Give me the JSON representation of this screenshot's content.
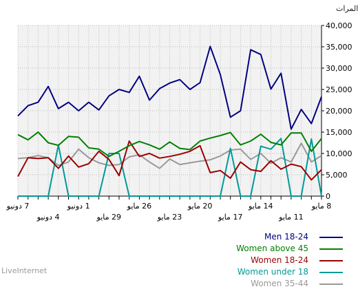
{
  "unit_label": "المرات",
  "footer": "LiveInternet",
  "chart_data": {
    "type": "line",
    "ylabel": "المرات",
    "ylim": [
      0,
      40000
    ],
    "yticks": [
      "0",
      "5,000",
      "10,000",
      "15,000",
      "20,000",
      "25,000",
      "30,000",
      "35,000",
      "40,000"
    ],
    "grid": true,
    "legend_position": "bottom-right",
    "x_tick_labels_upper": [
      "7 دونيو",
      "1 دونيو",
      "26 مايو",
      "20 مايو",
      "14 مايو",
      "8 مايو"
    ],
    "x_tick_labels_lower": [
      "4 دونيو",
      "29 مايو",
      "23 مايو",
      "17 مايو",
      "11 مايو"
    ],
    "series": [
      {
        "name": "Men 18-24",
        "color": "#000080",
        "values": [
          18800,
          21200,
          22000,
          25700,
          20500,
          22000,
          20000,
          22000,
          20200,
          23500,
          25000,
          24300,
          28100,
          22500,
          25200,
          26500,
          27300,
          25000,
          26600,
          35100,
          28500,
          18500,
          20000,
          34300,
          33200,
          25100,
          28800,
          15700,
          20300,
          17000,
          23300
        ]
      },
      {
        "name": "Women above 45",
        "color": "#008000",
        "values": [
          14400,
          13200,
          15000,
          12500,
          11900,
          14000,
          13800,
          11300,
          11000,
          9300,
          10500,
          11800,
          12800,
          12000,
          11000,
          12700,
          11200,
          10900,
          12900,
          13600,
          14200,
          14900,
          12000,
          12900,
          14500,
          12600,
          12000,
          14800,
          14800,
          10500,
          13500
        ]
      },
      {
        "name": "Women 18-24",
        "color": "#990000",
        "values": [
          4600,
          9000,
          8800,
          9000,
          6500,
          9400,
          6800,
          7600,
          10500,
          8600,
          4800,
          12900,
          9300,
          10000,
          8900,
          9300,
          9800,
          10500,
          11800,
          5500,
          6000,
          4200,
          8000,
          6200,
          5800,
          8300,
          6300,
          7500,
          6900,
          3800,
          6200
        ]
      },
      {
        "name": "Women under 18",
        "color": "#009999",
        "values": [
          0,
          0,
          0,
          0,
          12000,
          0,
          0,
          0,
          0,
          10000,
          10000,
          0,
          0,
          0,
          0,
          0,
          0,
          0,
          0,
          0,
          0,
          11200,
          0,
          0,
          11700,
          11000,
          13500,
          0,
          0,
          13400,
          0
        ]
      },
      {
        "name": "Women 35-44",
        "color": "#999999",
        "values": [
          8800,
          9000,
          9500,
          9000,
          7200,
          8000,
          11000,
          9000,
          7800,
          7200,
          7400,
          9200,
          9700,
          8000,
          6500,
          8700,
          7400,
          7800,
          8200,
          8500,
          9400,
          10800,
          11000,
          8600,
          10000,
          7700,
          9000,
          8000,
          12400,
          8000,
          9500
        ]
      }
    ]
  }
}
